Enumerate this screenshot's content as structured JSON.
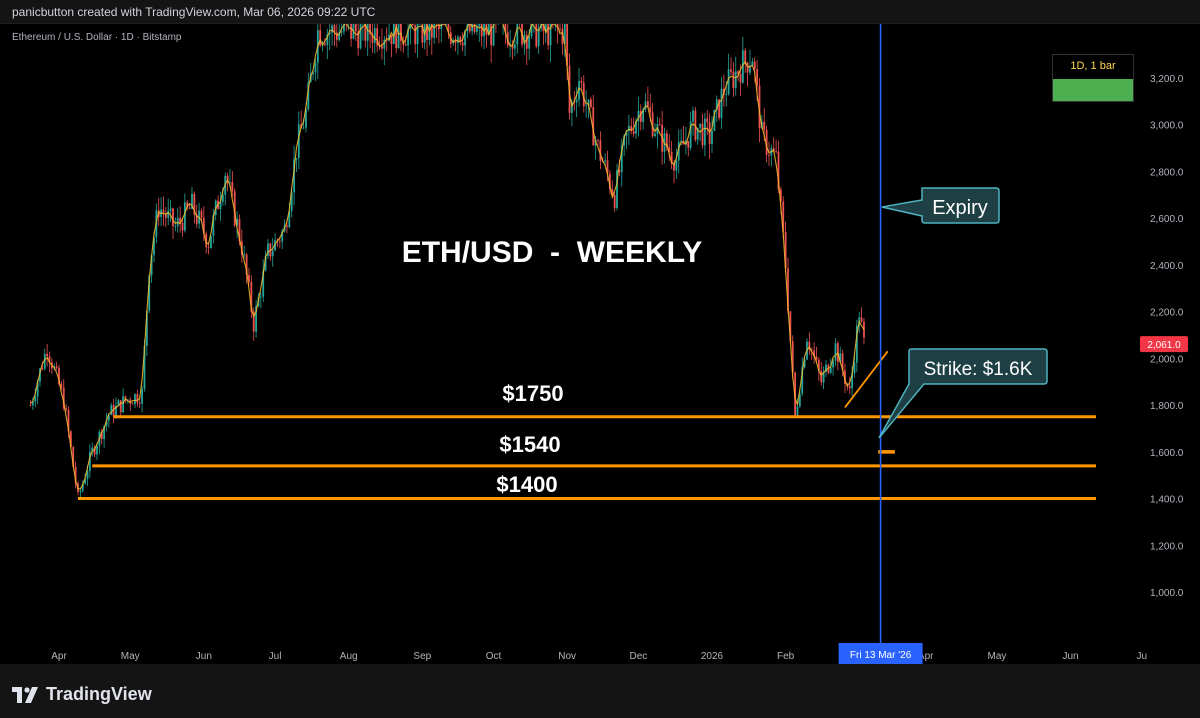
{
  "header": {
    "attribution": "panicbutton created with TradingView.com, Mar 06, 2026 09:22 UTC",
    "symbol_line": "Ethereum / U.S. Dollar · 1D · Bitstamp"
  },
  "timeframe_badge": {
    "label": "1D, 1 bar",
    "bar_color": "#4caf50"
  },
  "footer": {
    "brand": "TradingView"
  },
  "colors": {
    "background": "#000000",
    "candle_up": "#26a69a",
    "candle_down": "#ef5350",
    "overlay_line": "#fbc02d",
    "support_line": "#ff9800",
    "expiry_line": "#2962ff",
    "price_tag": "#f23645",
    "callout_bg": "#1e3f44",
    "callout_border": "#4fb3bf"
  },
  "chart_data": {
    "type": "candlestick",
    "title": "ETH/USD  -  WEEKLY",
    "y_axis": {
      "ticks": [
        "3,200.0",
        "3,000.0",
        "2,800.0",
        "2,600.0",
        "2,400.0",
        "2,200.0",
        "2,000.0",
        "1,800.0",
        "1,600.0",
        "1,400.0",
        "1,200.0",
        "1,000.0"
      ],
      "tick_values": [
        3200,
        3000,
        2800,
        2600,
        2400,
        2200,
        2000,
        1800,
        1600,
        1400,
        1200,
        1000
      ],
      "range": [
        780,
        3290
      ]
    },
    "x_axis": {
      "labels": [
        {
          "text": "Apr",
          "date": "2025-04-01"
        },
        {
          "text": "May",
          "date": "2025-05-01"
        },
        {
          "text": "Jun",
          "date": "2025-06-01"
        },
        {
          "text": "Jul",
          "date": "2025-07-01"
        },
        {
          "text": "Aug",
          "date": "2025-08-01"
        },
        {
          "text": "Sep",
          "date": "2025-09-01"
        },
        {
          "text": "Oct",
          "date": "2025-10-01"
        },
        {
          "text": "Nov",
          "date": "2025-11-01"
        },
        {
          "text": "Dec",
          "date": "2025-12-01"
        },
        {
          "text": "2026",
          "date": "2026-01-01"
        },
        {
          "text": "Feb",
          "date": "2026-02-01"
        },
        {
          "text": "Apr",
          "date": "2026-04-01"
        },
        {
          "text": "May",
          "date": "2026-05-01"
        },
        {
          "text": "Jun",
          "date": "2026-06-01"
        },
        {
          "text": "Ju",
          "date": "2026-07-01"
        }
      ],
      "highlight": {
        "text": "Fri 13 Mar '26",
        "date": "2026-03-13"
      }
    },
    "last_price": {
      "value": 2061.0,
      "label": "2,061.0"
    },
    "price_path": [
      [
        "2025-03-20",
        1800
      ],
      [
        "2025-03-27",
        2050
      ],
      [
        "2025-04-03",
        1820
      ],
      [
        "2025-04-09",
        1400
      ],
      [
        "2025-04-15",
        1600
      ],
      [
        "2025-04-22",
        1760
      ],
      [
        "2025-04-29",
        1820
      ],
      [
        "2025-05-06",
        1850
      ],
      [
        "2025-05-09",
        2400
      ],
      [
        "2025-05-13",
        2650
      ],
      [
        "2025-05-20",
        2560
      ],
      [
        "2025-05-27",
        2650
      ],
      [
        "2025-06-03",
        2500
      ],
      [
        "2025-06-10",
        2800
      ],
      [
        "2025-06-17",
        2480
      ],
      [
        "2025-06-22",
        2150
      ],
      [
        "2025-06-28",
        2450
      ],
      [
        "2025-07-05",
        2550
      ],
      [
        "2025-07-10",
        2900
      ],
      [
        "2025-07-14",
        3050
      ],
      [
        "2025-07-19",
        3400
      ],
      [
        "2025-10-31",
        3400
      ],
      [
        "2025-11-02",
        3050
      ],
      [
        "2025-11-06",
        3200
      ],
      [
        "2025-11-14",
        2900
      ],
      [
        "2025-11-21",
        2700
      ],
      [
        "2025-11-26",
        2950
      ],
      [
        "2025-12-03",
        3100
      ],
      [
        "2025-12-10",
        2950
      ],
      [
        "2025-12-17",
        2850
      ],
      [
        "2025-12-24",
        3000
      ],
      [
        "2025-12-31",
        2950
      ],
      [
        "2026-01-06",
        3150
      ],
      [
        "2026-01-13",
        3250
      ],
      [
        "2026-01-18",
        3300
      ],
      [
        "2026-01-22",
        2950
      ],
      [
        "2026-01-28",
        2850
      ],
      [
        "2026-02-01",
        2400
      ],
      [
        "2026-02-05",
        1750
      ],
      [
        "2026-02-10",
        2100
      ],
      [
        "2026-02-16",
        1900
      ],
      [
        "2026-02-22",
        2050
      ],
      [
        "2026-02-28",
        1850
      ],
      [
        "2026-03-04",
        2200
      ],
      [
        "2026-03-06",
        2061
      ]
    ],
    "horizontal_levels": [
      {
        "value": 1750,
        "label": "$1750",
        "start": "2025-04-24"
      },
      {
        "value": 1540,
        "label": "$1540",
        "start": "2025-04-15"
      },
      {
        "value": 1400,
        "label": "$1400",
        "start": "2025-04-09"
      }
    ],
    "trendline": {
      "from": [
        "2026-02-26",
        1790
      ],
      "to": [
        "2026-03-16",
        2030
      ]
    },
    "strike": {
      "value": 1600,
      "label": "Strike: $1.6K",
      "from": "2026-03-12",
      "to": "2026-03-19"
    },
    "expiry": {
      "label": "Expiry",
      "date": "2026-03-13"
    }
  }
}
